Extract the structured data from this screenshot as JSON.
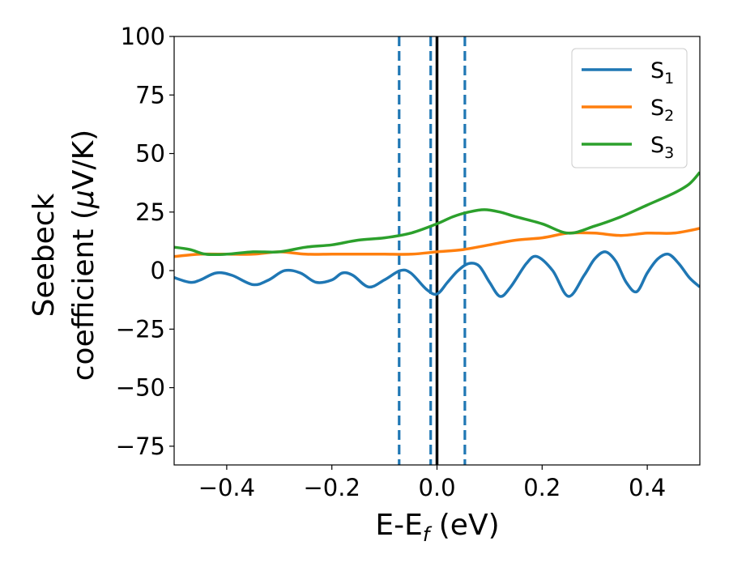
{
  "chart_data": {
    "type": "line",
    "title": "",
    "xlabel": {
      "main": "E-E",
      "sub": "f",
      "suffix": " (eV)"
    },
    "ylabel": {
      "line1": "Seebeck",
      "line2_prefix": "coefficient  (",
      "mu": "μ",
      "line2_suffix": "V/K)"
    },
    "xlim": [
      -0.5,
      0.5
    ],
    "ylim": [
      -83,
      100
    ],
    "xticks": [
      -0.4,
      -0.2,
      0.0,
      0.2,
      0.4
    ],
    "xtick_labels": [
      "−0.4",
      "−0.2",
      "0.0",
      "0.2",
      "0.4"
    ],
    "yticks": [
      100,
      75,
      50,
      25,
      0,
      -25,
      -50,
      -75
    ],
    "ytick_labels": [
      "100",
      "75",
      "50",
      "25",
      "0",
      "−25",
      "−50",
      "−75"
    ],
    "grid": false,
    "legend_position": "upper-right",
    "vlines": [
      {
        "x": 0.0,
        "style": "solid",
        "color": "#000000"
      },
      {
        "x": -0.072,
        "style": "dashed",
        "color": "#1f77b4"
      },
      {
        "x": -0.012,
        "style": "dashed",
        "color": "#1f77b4"
      },
      {
        "x": 0.053,
        "style": "dashed",
        "color": "#1f77b4"
      }
    ],
    "series": [
      {
        "name": "S",
        "sub": "1",
        "color": "#1f77b4",
        "x": [
          -0.5,
          -0.47,
          -0.45,
          -0.42,
          -0.39,
          -0.35,
          -0.32,
          -0.29,
          -0.26,
          -0.23,
          -0.2,
          -0.18,
          -0.16,
          -0.13,
          -0.1,
          -0.07,
          -0.05,
          -0.02,
          0.0,
          0.02,
          0.04,
          0.06,
          0.08,
          0.1,
          0.12,
          0.14,
          0.17,
          0.19,
          0.22,
          0.25,
          0.28,
          0.3,
          0.32,
          0.34,
          0.36,
          0.38,
          0.4,
          0.42,
          0.44,
          0.46,
          0.48,
          0.5
        ],
        "y": [
          -3,
          -5,
          -4,
          -1,
          -2,
          -6,
          -4,
          0,
          -1,
          -5,
          -4,
          -1,
          -2,
          -7,
          -4,
          0,
          -1,
          -8,
          -10,
          -5,
          0,
          3,
          2,
          -5,
          -11,
          -7,
          3,
          6,
          0,
          -11,
          -2,
          5,
          8,
          4,
          -5,
          -9,
          -1,
          5,
          7,
          3,
          -3,
          -7
        ]
      },
      {
        "name": "S",
        "sub": "2",
        "color": "#ff7f0e",
        "x": [
          -0.5,
          -0.45,
          -0.4,
          -0.35,
          -0.3,
          -0.25,
          -0.2,
          -0.15,
          -0.1,
          -0.05,
          0.0,
          0.05,
          0.1,
          0.15,
          0.2,
          0.25,
          0.3,
          0.35,
          0.4,
          0.45,
          0.5
        ],
        "y": [
          6,
          7,
          7,
          7,
          8,
          7,
          7,
          7,
          7,
          7,
          8,
          9,
          11,
          13,
          14,
          16,
          16,
          15,
          16,
          16,
          18
        ]
      },
      {
        "name": "S",
        "sub": "3",
        "color": "#2ca02c",
        "x": [
          -0.5,
          -0.47,
          -0.44,
          -0.4,
          -0.35,
          -0.3,
          -0.25,
          -0.2,
          -0.15,
          -0.1,
          -0.05,
          0.0,
          0.03,
          0.06,
          0.09,
          0.12,
          0.15,
          0.2,
          0.25,
          0.3,
          0.35,
          0.4,
          0.45,
          0.48,
          0.5
        ],
        "y": [
          10,
          9,
          7,
          7,
          8,
          8,
          10,
          11,
          13,
          14,
          16,
          20,
          23,
          25,
          26,
          25,
          23,
          20,
          16,
          19,
          23,
          28,
          33,
          37,
          42
        ]
      }
    ]
  }
}
